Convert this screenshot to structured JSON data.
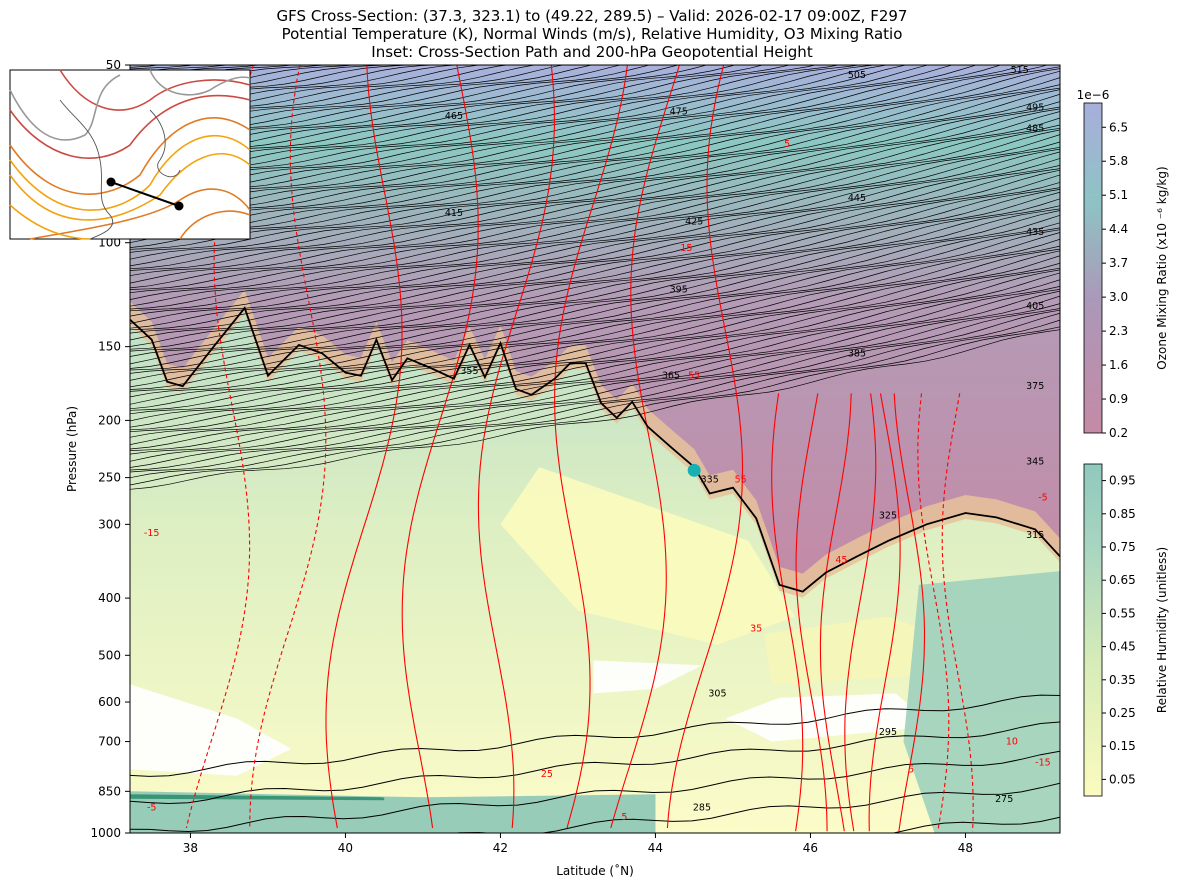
{
  "title": {
    "line1": "GFS Cross-Section: (37.3, 323.1) to (49.22, 289.5) – Valid: 2026-02-17 09:00Z, F297",
    "line2": "Potential Temperature (K), Normal Winds (m/s), Relative Humidity, O3 Mixing Ratio",
    "line3": "Inset: Cross-Section Path and 200-hPa Geopotential Height"
  },
  "chart_data": {
    "type": "cross-section",
    "xlabel": "Latitude (˚N)",
    "ylabel": "Pressure (hPa)",
    "xlim": [
      37.22,
      49.22
    ],
    "ylim": [
      1000,
      50
    ],
    "y_scale": "log",
    "x_ticks": [
      38,
      40,
      42,
      44,
      46,
      48
    ],
    "y_ticks": [
      1000,
      850,
      700,
      600,
      500,
      400,
      300,
      250,
      200,
      150,
      100,
      50
    ],
    "theta_labels": [
      {
        "value": "515",
        "lat": 48.7,
        "p": 51
      },
      {
        "value": "505",
        "lat": 46.6,
        "p": 52
      },
      {
        "value": "495",
        "lat": 48.9,
        "p": 59
      },
      {
        "value": "485",
        "lat": 48.9,
        "p": 64
      },
      {
        "value": "475",
        "lat": 44.3,
        "p": 60
      },
      {
        "value": "465",
        "lat": 41.4,
        "p": 61
      },
      {
        "value": "445",
        "lat": 46.6,
        "p": 84
      },
      {
        "value": "435",
        "lat": 48.9,
        "p": 96
      },
      {
        "value": "425",
        "lat": 44.5,
        "p": 92
      },
      {
        "value": "415",
        "lat": 41.4,
        "p": 89
      },
      {
        "value": "405",
        "lat": 48.9,
        "p": 128
      },
      {
        "value": "395",
        "lat": 44.3,
        "p": 120
      },
      {
        "value": "385",
        "lat": 46.6,
        "p": 154
      },
      {
        "value": "375",
        "lat": 48.9,
        "p": 175
      },
      {
        "value": "365",
        "lat": 44.2,
        "p": 168
      },
      {
        "value": "355",
        "lat": 41.6,
        "p": 165
      },
      {
        "value": "345",
        "lat": 48.9,
        "p": 235
      },
      {
        "value": "335",
        "lat": 44.7,
        "p": 252
      },
      {
        "value": "325",
        "lat": 47.0,
        "p": 290
      },
      {
        "value": "315",
        "lat": 48.9,
        "p": 313
      },
      {
        "value": "305",
        "lat": 44.8,
        "p": 580
      },
      {
        "value": "295",
        "lat": 47.0,
        "p": 675
      },
      {
        "value": "285",
        "lat": 44.6,
        "p": 905
      },
      {
        "value": "275",
        "lat": 48.5,
        "p": 876
      }
    ],
    "wind_labels": [
      {
        "value": "5",
        "lat": 45.7,
        "p": 68
      },
      {
        "value": "15",
        "lat": 44.4,
        "p": 102
      },
      {
        "value": "55",
        "lat": 44.5,
        "p": 168
      },
      {
        "value": "55",
        "lat": 45.1,
        "p": 252
      },
      {
        "value": "-15",
        "lat": 37.5,
        "p": 310
      },
      {
        "value": "45",
        "lat": 46.4,
        "p": 345
      },
      {
        "value": "35",
        "lat": 45.3,
        "p": 450
      },
      {
        "value": "25",
        "lat": 42.6,
        "p": 795
      },
      {
        "value": "5",
        "lat": 43.6,
        "p": 940
      },
      {
        "value": "-5",
        "lat": 37.5,
        "p": 905
      },
      {
        "value": "5",
        "lat": 47.3,
        "p": 780
      },
      {
        "value": "10",
        "lat": 48.6,
        "p": 700
      },
      {
        "value": "-15",
        "lat": 49.0,
        "p": 760
      },
      {
        "value": "-5",
        "lat": 49.0,
        "p": 270
      }
    ],
    "tropopause": [
      {
        "lat": 37.22,
        "p": 135
      },
      {
        "lat": 37.5,
        "p": 146
      },
      {
        "lat": 37.7,
        "p": 172
      },
      {
        "lat": 37.9,
        "p": 175
      },
      {
        "lat": 38.3,
        "p": 150
      },
      {
        "lat": 38.7,
        "p": 129
      },
      {
        "lat": 39.0,
        "p": 168
      },
      {
        "lat": 39.4,
        "p": 149
      },
      {
        "lat": 39.7,
        "p": 154
      },
      {
        "lat": 40.0,
        "p": 166
      },
      {
        "lat": 40.2,
        "p": 168
      },
      {
        "lat": 40.4,
        "p": 146
      },
      {
        "lat": 40.6,
        "p": 171
      },
      {
        "lat": 40.8,
        "p": 157
      },
      {
        "lat": 41.1,
        "p": 163
      },
      {
        "lat": 41.4,
        "p": 170
      },
      {
        "lat": 41.6,
        "p": 149
      },
      {
        "lat": 41.8,
        "p": 169
      },
      {
        "lat": 42.0,
        "p": 148
      },
      {
        "lat": 42.2,
        "p": 177
      },
      {
        "lat": 42.4,
        "p": 181
      },
      {
        "lat": 42.7,
        "p": 170
      },
      {
        "lat": 42.9,
        "p": 160
      },
      {
        "lat": 43.1,
        "p": 160
      },
      {
        "lat": 43.3,
        "p": 187
      },
      {
        "lat": 43.5,
        "p": 198
      },
      {
        "lat": 43.7,
        "p": 186
      },
      {
        "lat": 43.9,
        "p": 205
      },
      {
        "lat": 44.2,
        "p": 222
      },
      {
        "lat": 44.5,
        "p": 240
      },
      {
        "lat": 44.7,
        "p": 266
      },
      {
        "lat": 45.0,
        "p": 260
      },
      {
        "lat": 45.3,
        "p": 293
      },
      {
        "lat": 45.6,
        "p": 380
      },
      {
        "lat": 45.9,
        "p": 390
      },
      {
        "lat": 46.2,
        "p": 362
      },
      {
        "lat": 46.6,
        "p": 340
      },
      {
        "lat": 47.0,
        "p": 320
      },
      {
        "lat": 47.5,
        "p": 300
      },
      {
        "lat": 48.0,
        "p": 287
      },
      {
        "lat": 48.4,
        "p": 292
      },
      {
        "lat": 48.9,
        "p": 306
      },
      {
        "lat": 49.22,
        "p": 340
      }
    ],
    "marker": {
      "lat": 44.5,
      "p": 243,
      "color": "#17b0b3"
    },
    "colorbars": [
      {
        "label": "Ozone Mixing Ratio (x10 ⁻⁶ kg/kg)",
        "offset_text": "1e−6",
        "ticks": [
          "0.2",
          "0.9",
          "1.6",
          "2.3",
          "3.0",
          "3.7",
          "4.4",
          "5.1",
          "5.8",
          "6.5"
        ],
        "range": [
          0.2,
          7.0
        ],
        "colors": [
          "#c58aa6",
          "#ab98b8",
          "#8ec3c4",
          "#a8aedc"
        ]
      },
      {
        "label": "Relative Humidity (unitless)",
        "ticks": [
          "0.05",
          "0.15",
          "0.25",
          "0.35",
          "0.45",
          "0.55",
          "0.65",
          "0.75",
          "0.85",
          "0.95"
        ],
        "range": [
          0.0,
          1.0
        ],
        "colors": [
          "#fbfbbe",
          "#d7ecb8",
          "#a8d5c0",
          "#8fc9bd"
        ]
      }
    ],
    "inset": {
      "path": [
        {
          "pt": "start"
        },
        {
          "pt": "end"
        }
      ],
      "line_colors": [
        "#f2a30f",
        "#e07b25",
        "#cc4a43",
        "#999999"
      ]
    },
    "colors": {
      "theta": "#000000",
      "wind_positive": "#ff0000",
      "wind_negative": "#ff0000",
      "tropopause": "#000000",
      "dry_stable": "#e7c29a"
    }
  }
}
